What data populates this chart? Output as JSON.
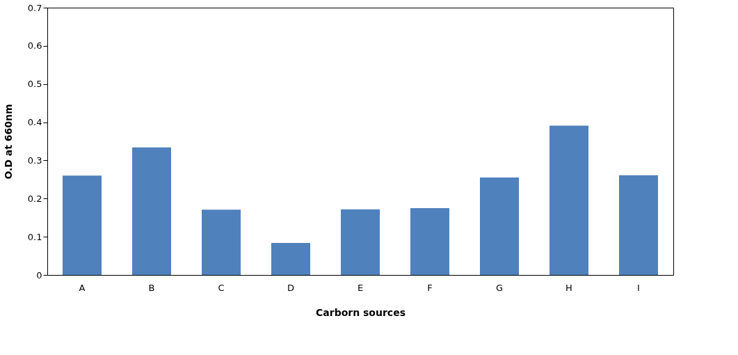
{
  "chart_data": {
    "type": "bar",
    "xlabel": "Carborn sources",
    "ylabel": "O.D at 660nm",
    "categories": [
      "A",
      "B",
      "C",
      "D",
      "E",
      "F",
      "G",
      "H",
      "I"
    ],
    "values": [
      0.26,
      0.334,
      0.171,
      0.084,
      0.172,
      0.175,
      0.255,
      0.391,
      0.261
    ],
    "color": "#4f81bd",
    "ylim": [
      0,
      0.7
    ],
    "yticks": [
      0,
      0.1,
      0.2,
      0.3,
      0.4,
      0.5,
      0.6,
      0.7
    ],
    "grid": false
  }
}
